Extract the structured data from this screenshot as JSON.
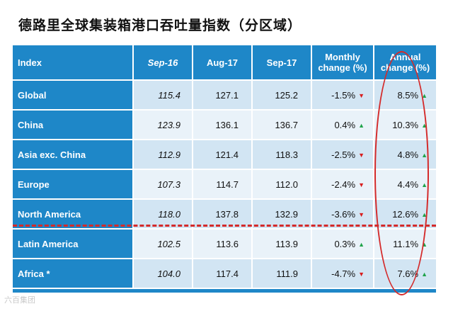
{
  "title": "德路里全球集装箱港口吞吐量指数（分区域）",
  "table": {
    "headers": [
      "Index",
      "Sep-16",
      "Aug-17",
      "Sep-17",
      "Monthly change (%)",
      "Annual change (%)"
    ],
    "headers_line": {
      "monthly": [
        "Monthly",
        "change (%)"
      ],
      "annual": [
        "Annual",
        "change (%)"
      ]
    },
    "rows": [
      {
        "region": "Global",
        "sep16": "115.4",
        "aug17": "127.1",
        "sep17": "125.2",
        "monthly": "-1.5%",
        "monthly_dir": "down",
        "annual": "8.5%",
        "annual_dir": "up"
      },
      {
        "region": "China",
        "sep16": "123.9",
        "aug17": "136.1",
        "sep17": "136.7",
        "monthly": "0.4%",
        "monthly_dir": "up",
        "annual": "10.3%",
        "annual_dir": "up"
      },
      {
        "region": "Asia exc. China",
        "sep16": "112.9",
        "aug17": "121.4",
        "sep17": "118.3",
        "monthly": "-2.5%",
        "monthly_dir": "down",
        "annual": "4.8%",
        "annual_dir": "up"
      },
      {
        "region": "Europe",
        "sep16": "107.3",
        "aug17": "114.7",
        "sep17": "112.0",
        "monthly": "-2.4%",
        "monthly_dir": "down",
        "annual": "4.4%",
        "annual_dir": "up"
      },
      {
        "region": "North America",
        "sep16": "118.0",
        "aug17": "137.8",
        "sep17": "132.9",
        "monthly": "-3.6%",
        "monthly_dir": "down",
        "annual": "12.6%",
        "annual_dir": "up"
      },
      {
        "region": "Latin America",
        "sep16": "102.5",
        "aug17": "113.6",
        "sep17": "113.9",
        "monthly": "0.3%",
        "monthly_dir": "up",
        "annual": "11.1%",
        "annual_dir": "up"
      },
      {
        "region": "Africa *",
        "sep16": "104.0",
        "aug17": "117.4",
        "sep17": "111.9",
        "monthly": "-4.7%",
        "monthly_dir": "down",
        "annual": "7.6%",
        "annual_dir": "up"
      }
    ]
  },
  "colors": {
    "header_blue": "#1e87c8",
    "row_light": "#d2e5f3",
    "row_lighter": "#e9f2f9",
    "up": "#1fa34a",
    "down": "#d81e1e",
    "annotation": "#d42a2a"
  },
  "icons": {
    "up": "triangle-up-icon",
    "down": "triangle-down-icon"
  },
  "watermark": "六百集团"
}
